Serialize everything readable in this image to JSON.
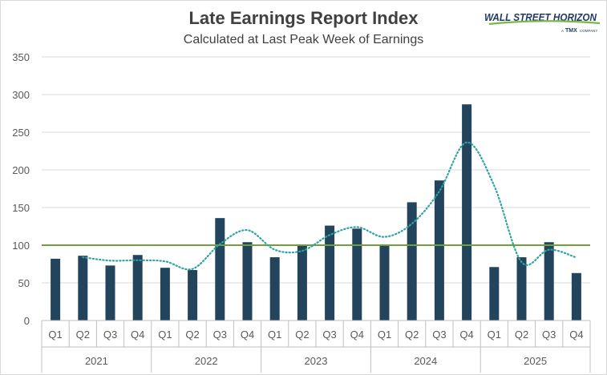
{
  "chart_data": {
    "type": "bar",
    "title": "Late Earnings Report Index",
    "subtitle": "Calculated at Last Peak Week of Earnings",
    "categories": [
      "Q1",
      "Q2",
      "Q3",
      "Q4",
      "Q1",
      "Q2",
      "Q3",
      "Q4",
      "Q1",
      "Q2",
      "Q3",
      "Q4",
      "Q1",
      "Q2",
      "Q3",
      "Q4",
      "Q1",
      "Q2",
      "Q3",
      "Q4"
    ],
    "years": [
      "2021",
      "2022",
      "2023",
      "2024",
      "2025"
    ],
    "series": [
      {
        "type": "bar",
        "color": "#23445d",
        "values": [
          82,
          86,
          73,
          87,
          70,
          67,
          136,
          104,
          84,
          101,
          126,
          122,
          100,
          157,
          186,
          287,
          71,
          84,
          104,
          63
        ]
      },
      {
        "type": "moving-average-dotted",
        "color": "#2ea3a3",
        "values": [
          null,
          84,
          79.5,
          80,
          78.5,
          68.5,
          101.5,
          120,
          94,
          92.5,
          113.5,
          124,
          111,
          128.5,
          171.5,
          236.5,
          179,
          77.5,
          94,
          83.5
        ]
      },
      {
        "type": "reference-line",
        "color": "#70a03a",
        "value": 100
      }
    ],
    "ylim": [
      0,
      350
    ],
    "yticks": [
      0,
      50,
      100,
      150,
      200,
      250,
      300,
      350
    ],
    "grid": true
  },
  "logo": {
    "name": "WALL STREET HORIZON",
    "tagline_prefix": "A",
    "tagline_brand": "TMX",
    "tagline_suffix": "COMPANY",
    "colors": {
      "navy": "#1f3b66",
      "green": "#7ab648"
    }
  }
}
